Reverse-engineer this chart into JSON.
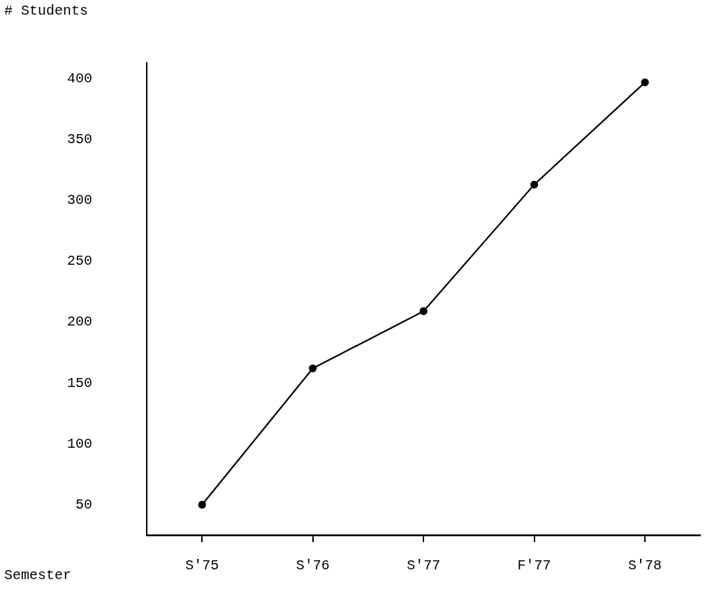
{
  "chart_data": {
    "type": "line",
    "xlabel": "Semester",
    "ylabel": "# Students",
    "categories": [
      "S'75",
      "S'76",
      "S'77",
      "F'77",
      "S'78"
    ],
    "series": [
      {
        "color": "#000000",
        "values": [
          50,
          162,
          209,
          313,
          397
        ]
      }
    ],
    "ylim": [
      25,
      413
    ],
    "yticks": [
      50,
      100,
      150,
      200,
      250,
      300,
      350,
      400
    ],
    "grid": false,
    "legend": false,
    "marker": "circle",
    "line_style": "solid"
  }
}
